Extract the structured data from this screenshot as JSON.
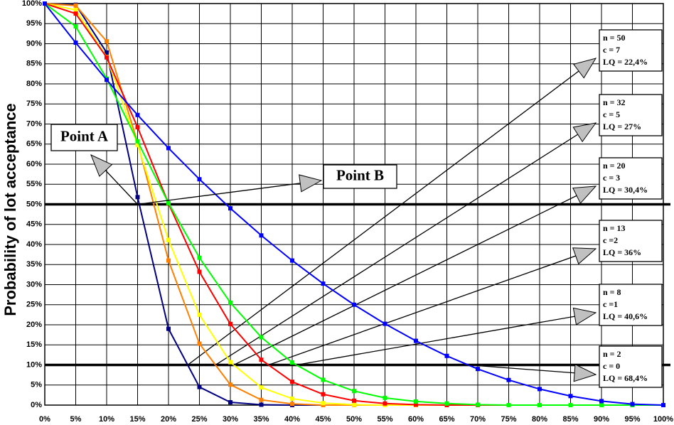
{
  "chart_data": {
    "type": "line",
    "y_label": "Probability of lot  acceptance",
    "x": [
      0,
      5,
      10,
      15,
      20,
      25,
      30,
      35,
      40,
      45,
      50,
      55,
      60,
      65,
      70,
      75,
      80,
      85,
      90,
      95,
      100
    ],
    "xlim": [
      0,
      100
    ],
    "ylim": [
      0,
      100
    ],
    "xticks": [
      {
        "value": 0,
        "label": "0%"
      },
      {
        "value": 5,
        "label": "5%"
      },
      {
        "value": 10,
        "label": "10%"
      },
      {
        "value": 15,
        "label": "15%"
      },
      {
        "value": 20,
        "label": "20%"
      },
      {
        "value": 25,
        "label": "25%"
      },
      {
        "value": 30,
        "label": "30%"
      },
      {
        "value": 35,
        "label": "35%"
      },
      {
        "value": 40,
        "label": "40%"
      },
      {
        "value": 45,
        "label": "45%"
      },
      {
        "value": 50,
        "label": "50%"
      },
      {
        "value": 55,
        "label": "55%"
      },
      {
        "value": 60,
        "label": "60%"
      },
      {
        "value": 65,
        "label": "65%"
      },
      {
        "value": 70,
        "label": "70%"
      },
      {
        "value": 75,
        "label": "75%"
      },
      {
        "value": 80,
        "label": "80%"
      },
      {
        "value": 85,
        "label": "85%"
      },
      {
        "value": 90,
        "label": "90%"
      },
      {
        "value": 95,
        "label": "95%"
      },
      {
        "value": 100,
        "label": "100%"
      }
    ],
    "yticks": [
      {
        "value": 0,
        "label": "0%"
      },
      {
        "value": 5,
        "label": "5%"
      },
      {
        "value": 10,
        "label": "10%"
      },
      {
        "value": 15,
        "label": "15%"
      },
      {
        "value": 20,
        "label": "20%"
      },
      {
        "value": 25,
        "label": "25%"
      },
      {
        "value": 30,
        "label": "30%"
      },
      {
        "value": 35,
        "label": "35%"
      },
      {
        "value": 40,
        "label": "40%"
      },
      {
        "value": 45,
        "label": "45%"
      },
      {
        "value": 50,
        "label": "50%"
      },
      {
        "value": 55,
        "label": "55%"
      },
      {
        "value": 60,
        "label": "60%"
      },
      {
        "value": 65,
        "label": "65%"
      },
      {
        "value": 70,
        "label": "70%"
      },
      {
        "value": 75,
        "label": "75%"
      },
      {
        "value": 80,
        "label": "80%"
      },
      {
        "value": 85,
        "label": "85%"
      },
      {
        "value": 90,
        "label": "90%"
      },
      {
        "value": 95,
        "label": "95%"
      },
      {
        "value": 100,
        "label": "100%"
      }
    ],
    "grid": true,
    "reference_lines": [
      50,
      10
    ],
    "series": [
      {
        "name": "n = 50",
        "details": [
          "c = 7",
          "LQ = 22,4%"
        ],
        "color": "#000080",
        "values": [
          100,
          99.7,
          87.8,
          51.8,
          19.0,
          4.5,
          0.7,
          0.1,
          0,
          0,
          0,
          0,
          0,
          0,
          0,
          0,
          0,
          0,
          0,
          0,
          0
        ]
      },
      {
        "name": "n = 32",
        "details": [
          "c = 5",
          "LQ = 27%"
        ],
        "color": "#ff8000",
        "values": [
          100,
          99.5,
          90.6,
          65.4,
          36.0,
          15.3,
          5.1,
          1.3,
          0.3,
          0,
          0,
          0,
          0,
          0,
          0,
          0,
          0,
          0,
          0,
          0,
          0
        ]
      },
      {
        "name": "n = 20",
        "details": [
          "c = 3",
          "LQ = 30,4%"
        ],
        "color": "#ffff00",
        "values": [
          100,
          98.4,
          86.7,
          64.8,
          41.1,
          22.5,
          10.7,
          4.4,
          1.6,
          0.5,
          0.1,
          0,
          0,
          0,
          0,
          0,
          0,
          0,
          0,
          0,
          0
        ]
      },
      {
        "name": "n = 13",
        "details": [
          "c =2",
          "LQ = 36%"
        ],
        "color": "#ff0000",
        "values": [
          100,
          97.5,
          86.6,
          69.2,
          50.2,
          33.2,
          20.2,
          11.3,
          5.8,
          2.7,
          1.1,
          0.4,
          0.1,
          0,
          0,
          0,
          0,
          0,
          0,
          0,
          0
        ]
      },
      {
        "name": "n = 8",
        "details": [
          "c =1",
          "LQ = 40,6%"
        ],
        "color": "#00ff00",
        "values": [
          100,
          94.3,
          81.3,
          65.7,
          50.3,
          36.7,
          25.5,
          16.9,
          10.6,
          6.3,
          3.5,
          1.8,
          0.9,
          0.4,
          0.1,
          0,
          0,
          0,
          0,
          0,
          0
        ]
      },
      {
        "name": "n = 2",
        "details": [
          "c = 0",
          "LQ = 68,4%"
        ],
        "color": "#0000ff",
        "values": [
          100,
          90.25,
          81,
          72.25,
          64,
          56.25,
          49,
          42.25,
          36,
          30.25,
          25,
          20.25,
          16,
          12.25,
          9,
          6.25,
          4,
          2.25,
          1,
          0.25,
          0
        ]
      }
    ],
    "annotations": [
      {
        "text": "Point A"
      },
      {
        "text": "Point B"
      }
    ]
  }
}
